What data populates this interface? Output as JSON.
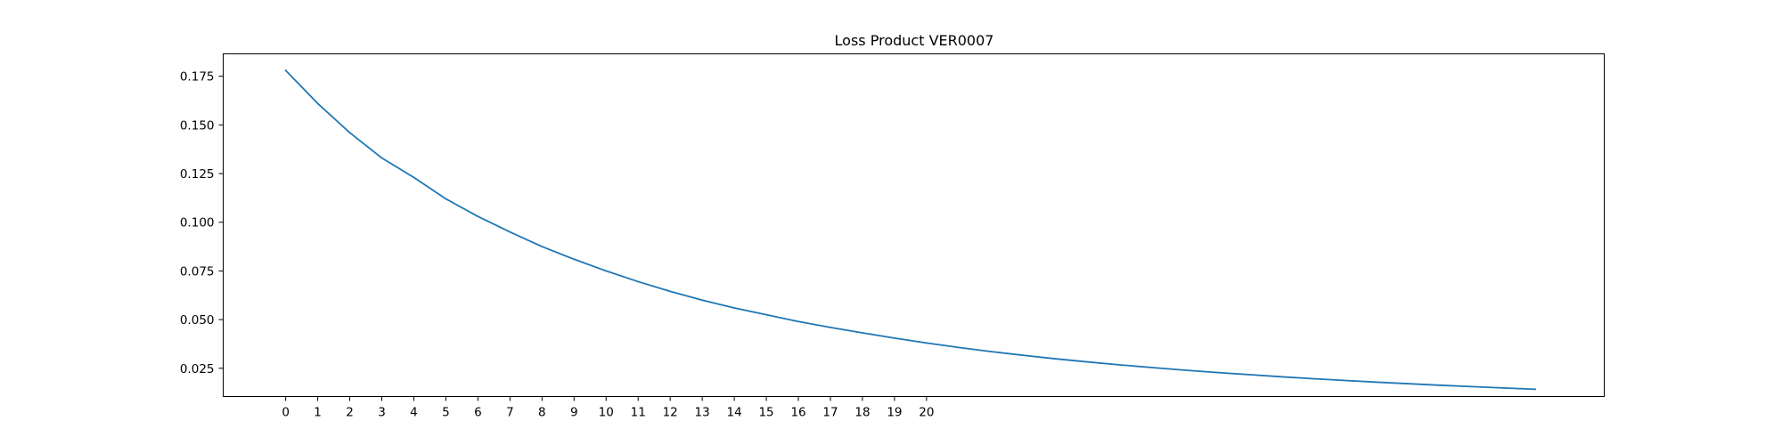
{
  "chart_data": {
    "type": "line",
    "title": "Loss Product VER0007",
    "xlabel": "",
    "ylabel": "",
    "grid": false,
    "legend": "none",
    "xlim": [
      -1.95,
      41.15
    ],
    "ylim": [
      0.0105,
      0.1865
    ],
    "xticks": [
      0,
      1,
      2,
      3,
      4,
      5,
      6,
      7,
      8,
      9,
      10,
      11,
      12,
      13,
      14,
      15,
      16,
      17,
      18,
      19,
      20
    ],
    "xtick_labels": [
      "0",
      "1",
      "2",
      "3",
      "4",
      "5",
      "6",
      "7",
      "8",
      "9",
      "10",
      "11",
      "12",
      "13",
      "14",
      "15",
      "16",
      "17",
      "18",
      "19",
      "20"
    ],
    "yticks": [
      0.025,
      0.05,
      0.075,
      0.1,
      0.125,
      0.15,
      0.175
    ],
    "ytick_labels": [
      "0.025",
      "0.050",
      "0.075",
      "0.100",
      "0.125",
      "0.150",
      "0.175"
    ],
    "series": [
      {
        "color": "#1f77b4",
        "x": [
          0,
          1,
          2,
          3,
          4,
          5,
          6,
          7,
          8,
          9,
          10,
          11,
          12,
          13,
          14,
          15,
          16,
          17,
          18,
          19,
          20,
          21,
          22,
          23,
          24,
          25,
          26,
          27,
          28,
          29,
          30,
          31,
          32,
          33,
          34,
          35,
          36,
          37,
          38,
          39
        ],
        "values": [
          0.178,
          0.161,
          0.146,
          0.133,
          0.123,
          0.112,
          0.103,
          0.095,
          0.0875,
          0.081,
          0.075,
          0.0695,
          0.0645,
          0.06,
          0.056,
          0.0525,
          0.049,
          0.046,
          0.0432,
          0.0405,
          0.038,
          0.0357,
          0.0336,
          0.0317,
          0.0299,
          0.0283,
          0.0268,
          0.0254,
          0.0241,
          0.0229,
          0.0218,
          0.0207,
          0.0197,
          0.0188,
          0.0179,
          0.0171,
          0.0163,
          0.0156,
          0.0149,
          0.0142
        ]
      }
    ]
  }
}
